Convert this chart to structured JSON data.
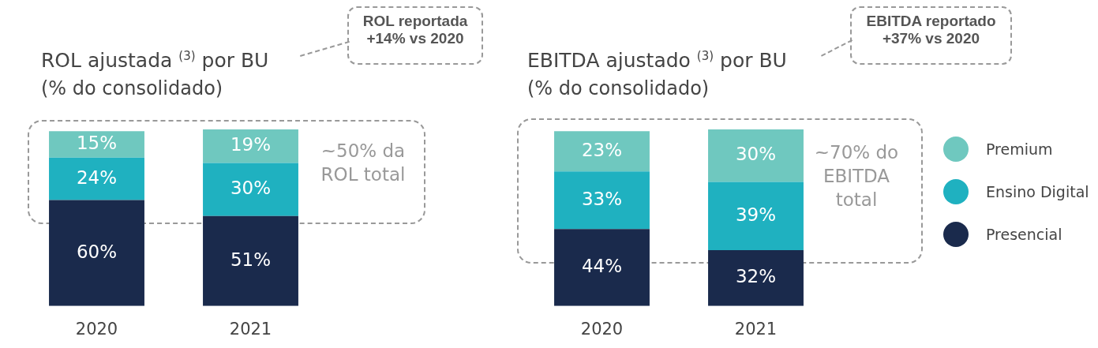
{
  "chart_data": [
    {
      "type": "bar",
      "stacked": true,
      "title": "ROL ajustada $^{(3)}$ por BU",
      "subtitle": "(% do consolidado)",
      "categories": [
        "2020",
        "2021"
      ],
      "tick_labels": "x",
      "legend": false,
      "series": [
        {
          "color": "#1a2a4c",
          "values": [
            60,
            51
          ],
          "value_labels": [
            "60%",
            "51%"
          ]
        },
        {
          "color": "#1fb1c0",
          "values": [
            24,
            30
          ],
          "value_labels": [
            "24%",
            "30%"
          ]
        },
        {
          "color": "#6fc8bf",
          "values": [
            15,
            19
          ],
          "value_labels": [
            "15%",
            "19%"
          ]
        }
      ],
      "annotations": [
        "ROL reportada +14% vs 2020",
        "~50% da ROL total"
      ]
    },
    {
      "type": "bar",
      "stacked": true,
      "title": "EBITDA ajustado $^{(3)}$ por BU",
      "subtitle": "(% do consolidado)",
      "categories": [
        "2020",
        "2021"
      ],
      "tick_labels": "x",
      "legend": "right",
      "series": [
        {
          "name": "Presencial",
          "color": "#1a2a4c",
          "values": [
            44,
            32
          ],
          "value_labels": [
            "44%",
            "32%"
          ]
        },
        {
          "name": "Ensino Digital",
          "color": "#1fb1c0",
          "values": [
            33,
            39
          ],
          "value_labels": [
            "33%",
            "39%"
          ]
        },
        {
          "name": "Premium",
          "color": "#6fc8bf",
          "values": [
            23,
            30
          ],
          "value_labels": [
            "23%",
            "30%"
          ]
        }
      ],
      "annotations": [
        "EBITDA reportado +37% vs 2020",
        "~70% do EBITDA total"
      ]
    }
  ]
}
